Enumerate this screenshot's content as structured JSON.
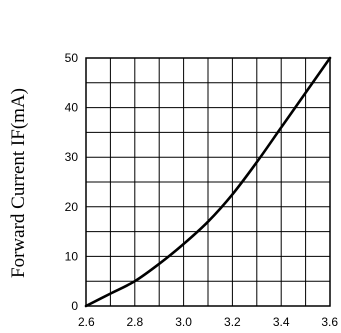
{
  "chart_data": {
    "type": "line",
    "title": "",
    "xlabel": "",
    "ylabel": "Forward Current IF(mA)",
    "xlim": [
      2.6,
      3.6
    ],
    "ylim": [
      0,
      50
    ],
    "x_ticks": [
      2.6,
      2.8,
      3.0,
      3.2,
      3.4,
      3.6
    ],
    "x_tick_labels": [
      "2.6",
      "2.8",
      "3.0",
      "3.2",
      "3.4",
      "3.6"
    ],
    "y_ticks": [
      0,
      10,
      20,
      30,
      40,
      50
    ],
    "y_tick_labels": [
      "0",
      "10",
      "20",
      "30",
      "40",
      "50"
    ],
    "x_grid_step": 0.1,
    "y_grid_step": 5,
    "grid": true,
    "series": [
      {
        "x": [
          2.6,
          2.7,
          2.8,
          2.9,
          3.0,
          3.1,
          3.2,
          3.3,
          3.4,
          3.5,
          3.6
        ],
        "y": [
          0,
          2.5,
          5,
          8.5,
          12.5,
          17,
          22.5,
          29,
          36,
          43,
          50
        ]
      }
    ]
  }
}
